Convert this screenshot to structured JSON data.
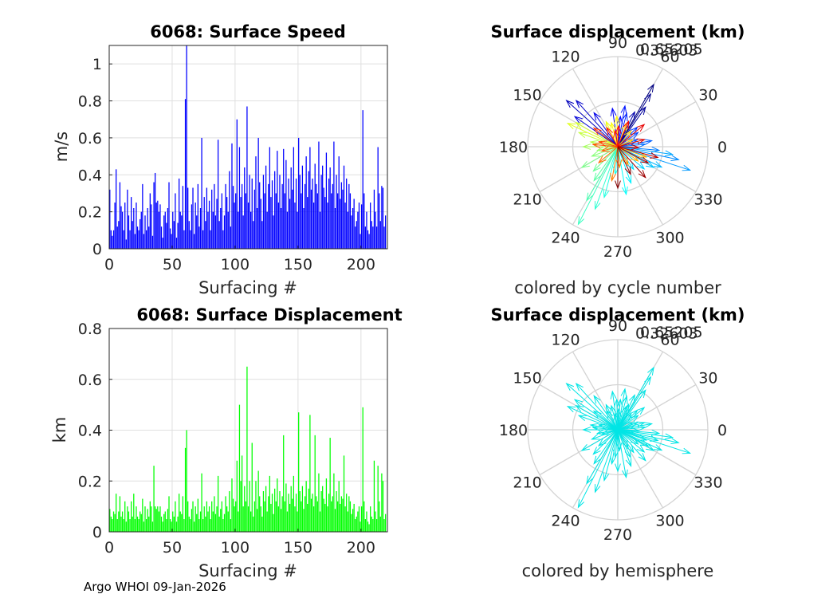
{
  "chart_data": [
    {
      "type": "bar",
      "title": "6068: Surface Speed",
      "xlabel": "Surfacing #",
      "ylabel": "m/s",
      "xlim": [
        0,
        221
      ],
      "ylim": [
        0,
        1.1
      ],
      "xticks": [
        0,
        50,
        100,
        150,
        200
      ],
      "yticks": [
        0,
        0.2,
        0.4,
        0.6,
        0.8,
        1
      ],
      "color": "#0000ff",
      "values": [
        0.32,
        0.1,
        0.07,
        0.1,
        0.25,
        0.43,
        0.12,
        0.15,
        0.36,
        0.23,
        0.2,
        0.1,
        0.25,
        0.05,
        0.32,
        0.18,
        0.1,
        0.28,
        0.15,
        0.22,
        0.08,
        0.25,
        0.12,
        0.1,
        0.16,
        0.2,
        0.35,
        0.08,
        0.18,
        0.1,
        0.22,
        0.12,
        0.3,
        0.24,
        0.07,
        0.36,
        0.41,
        0.25,
        0.26,
        0.2,
        0.24,
        0.12,
        0.06,
        0.18,
        0.2,
        0.14,
        0.22,
        0.36,
        0.11,
        0.08,
        0.2,
        0.15,
        0.3,
        0.06,
        0.14,
        0.38,
        0.2,
        0.18,
        0.34,
        0.1,
        0.81,
        1.1,
        0.33,
        0.15,
        0.1,
        0.24,
        0.33,
        0.08,
        0.25,
        0.18,
        0.35,
        0.12,
        0.22,
        0.6,
        0.1,
        0.28,
        0.15,
        0.33,
        0.2,
        0.26,
        0.1,
        0.32,
        0.2,
        0.35,
        0.18,
        0.27,
        0.59,
        0.15,
        0.22,
        0.3,
        0.1,
        0.18,
        0.35,
        0.28,
        0.2,
        0.42,
        0.12,
        0.57,
        0.34,
        0.25,
        0.3,
        0.7,
        0.2,
        0.55,
        0.28,
        0.35,
        0.18,
        0.44,
        0.3,
        0.77,
        0.25,
        0.4,
        0.2,
        0.38,
        0.15,
        0.32,
        0.5,
        0.22,
        0.6,
        0.36,
        0.27,
        0.15,
        0.4,
        0.3,
        0.45,
        0.2,
        0.35,
        0.55,
        0.28,
        0.37,
        0.18,
        0.42,
        0.3,
        0.53,
        0.25,
        0.4,
        0.22,
        0.35,
        0.54,
        0.3,
        0.48,
        0.2,
        0.38,
        0.27,
        0.44,
        0.32,
        0.55,
        0.25,
        0.38,
        0.2,
        0.6,
        0.4,
        0.3,
        0.45,
        0.22,
        0.35,
        0.5,
        0.28,
        0.42,
        0.55,
        0.32,
        0.38,
        0.25,
        0.46,
        0.35,
        0.3,
        0.58,
        0.2,
        0.4,
        0.45,
        0.33,
        0.28,
        0.52,
        0.25,
        0.38,
        0.44,
        0.3,
        0.35,
        0.58,
        0.22,
        0.4,
        0.3,
        0.5,
        0.27,
        0.36,
        0.32,
        0.45,
        0.25,
        0.38,
        0.2,
        0.35,
        0.3,
        0.18,
        0.22,
        0.27,
        0.12,
        0.15,
        0.2,
        0.25,
        0.08,
        0.24,
        0.75,
        0.3,
        0.12,
        0.2,
        0.1,
        0.08,
        0.25,
        0.15,
        0.12,
        0.32,
        0.2,
        0.12,
        0.55,
        0.3,
        0.15,
        0.34,
        0.33,
        0.12,
        0.18
      ],
      "n": 221
    },
    {
      "type": "bar",
      "title": "6068: Surface Displacement",
      "xlabel": "Surfacing #",
      "ylabel": "km",
      "xlim": [
        0,
        221
      ],
      "ylim": [
        0,
        0.8
      ],
      "xticks": [
        0,
        50,
        100,
        150,
        200
      ],
      "yticks": [
        0,
        0.2,
        0.4,
        0.6,
        0.8
      ],
      "color": "#00ff00",
      "values": [
        0.09,
        0.06,
        0.05,
        0.08,
        0.07,
        0.15,
        0.05,
        0.08,
        0.14,
        0.06,
        0.08,
        0.05,
        0.12,
        0.04,
        0.1,
        0.08,
        0.05,
        0.12,
        0.06,
        0.15,
        0.05,
        0.1,
        0.06,
        0.05,
        0.08,
        0.07,
        0.13,
        0.04,
        0.1,
        0.05,
        0.09,
        0.06,
        0.12,
        0.1,
        0.04,
        0.26,
        0.1,
        0.09,
        0.1,
        0.08,
        0.1,
        0.06,
        0.04,
        0.07,
        0.08,
        0.05,
        0.09,
        0.14,
        0.05,
        0.04,
        0.08,
        0.06,
        0.12,
        0.04,
        0.06,
        0.15,
        0.08,
        0.07,
        0.14,
        0.05,
        0.33,
        0.4,
        0.12,
        0.06,
        0.05,
        0.09,
        0.12,
        0.04,
        0.1,
        0.07,
        0.13,
        0.05,
        0.08,
        0.23,
        0.05,
        0.1,
        0.06,
        0.12,
        0.08,
        0.1,
        0.05,
        0.12,
        0.08,
        0.14,
        0.07,
        0.1,
        0.22,
        0.06,
        0.09,
        0.12,
        0.05,
        0.07,
        0.14,
        0.1,
        0.08,
        0.16,
        0.05,
        0.21,
        0.13,
        0.1,
        0.12,
        0.28,
        0.08,
        0.5,
        0.2,
        0.3,
        0.1,
        0.18,
        0.12,
        0.65,
        0.1,
        0.2,
        0.08,
        0.35,
        0.06,
        0.12,
        0.2,
        0.09,
        0.24,
        0.14,
        0.1,
        0.06,
        0.16,
        0.12,
        0.18,
        0.08,
        0.14,
        0.22,
        0.11,
        0.15,
        0.07,
        0.17,
        0.12,
        0.21,
        0.1,
        0.16,
        0.09,
        0.14,
        0.38,
        0.12,
        0.19,
        0.08,
        0.15,
        0.11,
        0.18,
        0.13,
        0.22,
        0.1,
        0.15,
        0.08,
        0.47,
        0.16,
        0.12,
        0.18,
        0.09,
        0.14,
        0.2,
        0.11,
        0.17,
        0.46,
        0.13,
        0.15,
        0.1,
        0.38,
        0.14,
        0.12,
        0.23,
        0.08,
        0.16,
        0.18,
        0.13,
        0.11,
        0.21,
        0.1,
        0.15,
        0.37,
        0.12,
        0.14,
        0.23,
        0.09,
        0.16,
        0.12,
        0.2,
        0.11,
        0.14,
        0.13,
        0.3,
        0.1,
        0.15,
        0.08,
        0.14,
        0.12,
        0.07,
        0.09,
        0.11,
        0.05,
        0.06,
        0.08,
        0.1,
        0.04,
        0.1,
        0.49,
        0.12,
        0.05,
        0.08,
        0.04,
        0.03,
        0.1,
        0.06,
        0.05,
        0.28,
        0.08,
        0.05,
        0.26,
        0.12,
        0.06,
        0.23,
        0.2,
        0.05,
        0.07
      ],
      "n": 221
    },
    {
      "type": "polar-compass",
      "title": "Surface displacement (km)",
      "caption": "colored by cycle number",
      "rmax": 0.65205,
      "rlabels": [
        "0.32603",
        "0.65205"
      ],
      "angle_labels": [
        "90",
        "60",
        "30",
        "0",
        "330",
        "300",
        "270",
        "240",
        "210",
        "180",
        "150",
        "120"
      ],
      "colormap": "jet",
      "arrows": [
        {
          "angle": 60,
          "r": 0.52
        },
        {
          "angle": 58,
          "r": 0.45
        },
        {
          "angle": 55,
          "r": 0.35
        },
        {
          "angle": 64,
          "r": 0.28
        },
        {
          "angle": 138,
          "r": 0.5
        },
        {
          "angle": 132,
          "r": 0.45
        },
        {
          "angle": 145,
          "r": 0.38
        },
        {
          "angle": 125,
          "r": 0.3
        },
        {
          "angle": 98,
          "r": 0.28
        },
        {
          "angle": 85,
          "r": 0.22
        },
        {
          "angle": 80,
          "r": 0.3
        },
        {
          "angle": 75,
          "r": 0.25
        },
        {
          "angle": 45,
          "r": 0.2
        },
        {
          "angle": 35,
          "r": 0.18
        },
        {
          "angle": 20,
          "r": 0.15
        },
        {
          "angle": 10,
          "r": 0.25
        },
        {
          "angle": 5,
          "r": 0.2
        },
        {
          "angle": -5,
          "r": 0.3
        },
        {
          "angle": -12,
          "r": 0.45
        },
        {
          "angle": -18,
          "r": 0.55
        },
        {
          "angle": -8,
          "r": 0.4
        },
        {
          "angle": -25,
          "r": 0.35
        },
        {
          "angle": -30,
          "r": 0.3
        },
        {
          "angle": -40,
          "r": 0.25
        },
        {
          "angle": -55,
          "r": 0.2
        },
        {
          "angle": -70,
          "r": 0.28
        },
        {
          "angle": -80,
          "r": 0.35
        },
        {
          "angle": -95,
          "r": 0.2
        },
        {
          "angle": -105,
          "r": 0.38
        },
        {
          "angle": -110,
          "r": 0.48
        },
        {
          "angle": -117,
          "r": 0.63
        },
        {
          "angle": -120,
          "r": 0.45
        },
        {
          "angle": -125,
          "r": 0.3
        },
        {
          "angle": -135,
          "r": 0.25
        },
        {
          "angle": -150,
          "r": 0.3
        },
        {
          "angle": -160,
          "r": 0.2
        },
        {
          "angle": -170,
          "r": 0.15
        },
        {
          "angle": 180,
          "r": 0.25
        },
        {
          "angle": 170,
          "r": 0.2
        },
        {
          "angle": 160,
          "r": 0.3
        },
        {
          "angle": 150,
          "r": 0.35
        },
        {
          "angle": 155,
          "r": 0.4
        },
        {
          "angle": 115,
          "r": 0.2
        },
        {
          "angle": 105,
          "r": 0.18
        },
        {
          "angle": 92,
          "r": 0.22
        },
        {
          "angle": 70,
          "r": 0.18
        },
        {
          "angle": 50,
          "r": 0.15
        },
        {
          "angle": 25,
          "r": 0.12
        },
        {
          "angle": -20,
          "r": 0.22
        },
        {
          "angle": -35,
          "r": 0.18
        },
        {
          "angle": -60,
          "r": 0.15
        },
        {
          "angle": -85,
          "r": 0.15
        },
        {
          "angle": -100,
          "r": 0.25
        },
        {
          "angle": -140,
          "r": 0.18
        },
        {
          "angle": -165,
          "r": 0.12
        },
        {
          "angle": 175,
          "r": 0.18
        },
        {
          "angle": 165,
          "r": 0.14
        },
        {
          "angle": 142,
          "r": 0.22
        },
        {
          "angle": 120,
          "r": 0.16
        },
        {
          "angle": 100,
          "r": 0.12
        },
        {
          "angle": 88,
          "r": 0.15
        },
        {
          "angle": 67,
          "r": 0.2
        },
        {
          "angle": 40,
          "r": 0.25
        },
        {
          "angle": 15,
          "r": 0.2
        },
        {
          "angle": -2,
          "r": 0.15
        },
        {
          "angle": -15,
          "r": 0.3
        },
        {
          "angle": -28,
          "r": 0.25
        },
        {
          "angle": -48,
          "r": 0.3
        },
        {
          "angle": -65,
          "r": 0.22
        },
        {
          "angle": -90,
          "r": 0.3
        }
      ]
    },
    {
      "type": "polar-compass",
      "title": "Surface displacement (km)",
      "caption": "colored by hemisphere",
      "rmax": 0.65205,
      "rlabels": [
        "0.32603",
        "0.65205"
      ],
      "angle_labels": [
        "90",
        "60",
        "30",
        "0",
        "330",
        "300",
        "270",
        "240",
        "210",
        "180",
        "150",
        "120"
      ],
      "color": "#00e5e5"
    }
  ],
  "footer": "Argo WHOI 09-Jan-2026"
}
